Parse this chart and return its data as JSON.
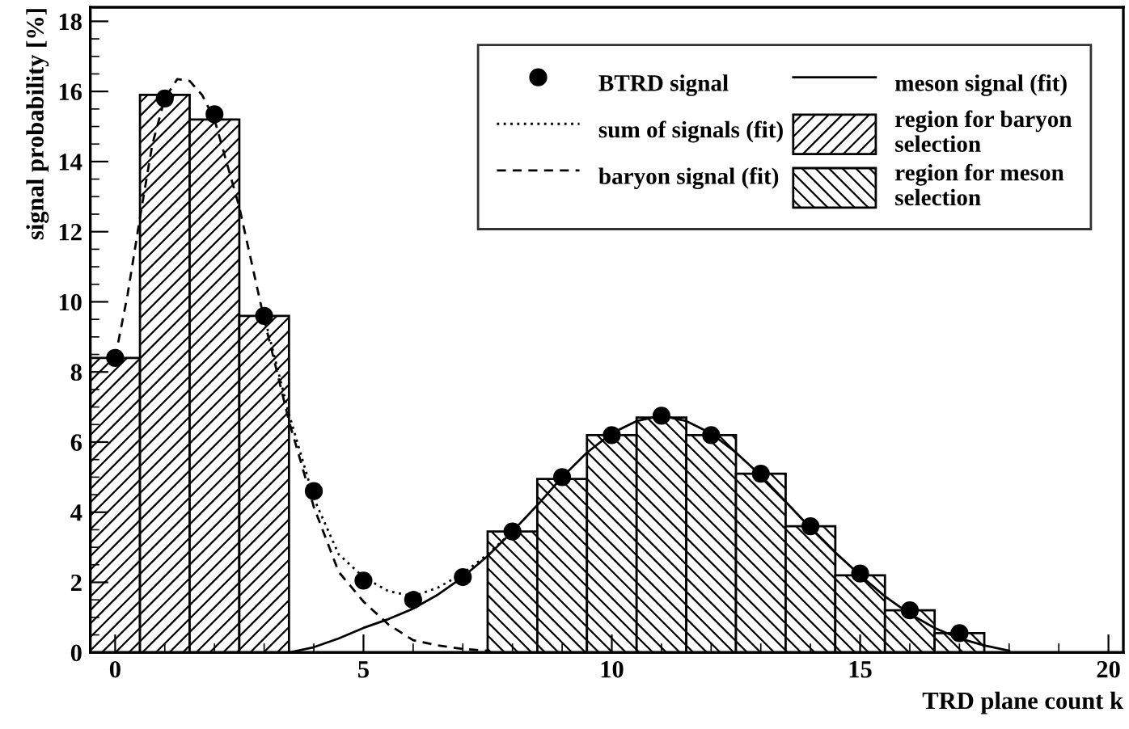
{
  "chart_data": {
    "type": "scatter",
    "xlabel": "TRD plane count k",
    "ylabel": "signal probability [%]",
    "xlim": [
      -0.5,
      20.3
    ],
    "ylim": [
      0,
      18.4
    ],
    "xticks": [
      0,
      5,
      10,
      15,
      20
    ],
    "yticks": [
      0,
      2,
      4,
      6,
      8,
      10,
      12,
      14,
      16,
      18
    ],
    "grid": false,
    "legend": "top right",
    "series": [
      {
        "name": "region for baryon selection",
        "type": "bar",
        "color": "#000000",
        "x": [
          0,
          1,
          2,
          3
        ],
        "values": [
          8.4,
          15.9,
          15.2,
          9.6
        ]
      },
      {
        "name": "region for meson selection",
        "type": "bar",
        "color": "#000000",
        "x": [
          8,
          9,
          10,
          11,
          12,
          13,
          14,
          15,
          16,
          17
        ],
        "values": [
          3.45,
          4.95,
          6.2,
          6.7,
          6.2,
          5.1,
          3.6,
          2.2,
          1.2,
          0.55
        ]
      },
      {
        "name": "BTRD signal",
        "marker": "circle",
        "color": "#000000",
        "x": [
          0,
          1,
          2,
          3,
          4,
          5,
          6,
          7,
          8,
          9,
          10,
          11,
          12,
          13,
          14,
          15,
          16,
          17
        ],
        "values": [
          8.4,
          15.8,
          15.35,
          9.6,
          4.6,
          2.05,
          1.5,
          2.15,
          3.45,
          5.0,
          6.2,
          6.75,
          6.2,
          5.1,
          3.6,
          2.25,
          1.2,
          0.55
        ]
      },
      {
        "name": "sum of signals (fit)",
        "type": "line",
        "line_style": "dotted",
        "color": "#000000",
        "x": [
          3,
          3.5,
          4,
          4.5,
          5,
          5.5,
          6,
          6.5,
          7,
          7.5,
          8
        ],
        "values": [
          9.6,
          6.8,
          4.4,
          2.8,
          2.15,
          1.75,
          1.6,
          1.85,
          2.25,
          2.8,
          3.45
        ]
      },
      {
        "name": "baryon signal (fit)",
        "type": "line",
        "line_style": "dashed",
        "color": "#000000",
        "x": [
          0,
          0.25,
          0.5,
          0.75,
          1,
          1.25,
          1.5,
          1.75,
          2,
          2.5,
          3,
          3.5,
          4,
          4.5,
          5,
          5.5,
          6,
          6.5,
          7,
          7.5
        ],
        "values": [
          8.4,
          10.2,
          12.4,
          14.5,
          15.8,
          16.35,
          16.3,
          15.9,
          15.2,
          12.7,
          9.5,
          6.6,
          4.15,
          2.3,
          1.45,
          0.8,
          0.35,
          0.2,
          0.1,
          0.05
        ]
      },
      {
        "name": "meson signal (fit)",
        "type": "line",
        "line_style": "solid",
        "color": "#000000",
        "x": [
          3.5,
          4,
          4.5,
          5,
          5.5,
          6,
          6.5,
          7,
          7.5,
          8,
          8.5,
          9,
          9.5,
          10,
          10.5,
          11,
          11.5,
          12,
          12.5,
          13,
          13.5,
          14,
          14.5,
          15,
          15.5,
          16,
          16.5,
          17,
          17.5,
          18
        ],
        "values": [
          0,
          0.15,
          0.4,
          0.7,
          0.95,
          1.25,
          1.65,
          2.15,
          2.75,
          3.45,
          4.2,
          5.0,
          5.7,
          6.25,
          6.6,
          6.75,
          6.6,
          6.25,
          5.7,
          5.05,
          4.3,
          3.55,
          2.85,
          2.2,
          1.6,
          1.1,
          0.7,
          0.4,
          0.2,
          0.05
        ]
      }
    ]
  }
}
